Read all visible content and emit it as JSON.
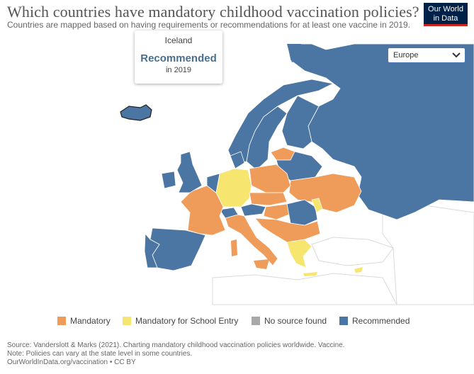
{
  "header": {
    "title": "Which countries have mandatory childhood vaccination policies?",
    "subtitle": "Countries are mapped based on having requirements or recommendations for at least one vaccine in 2019."
  },
  "logo": {
    "line1": "Our World",
    "line2": "in Data"
  },
  "region_selector": {
    "selected": "Europe",
    "icon": "chevron-down-icon"
  },
  "tooltip": {
    "country": "Iceland",
    "value": "Recommended",
    "year": "in 2019"
  },
  "legend": {
    "items": [
      {
        "label": "Mandatory",
        "color": "#ef9c5b"
      },
      {
        "label": "Mandatory for School Entry",
        "color": "#f6e56e"
      },
      {
        "label": "No source found",
        "color": "#a8a8a8"
      },
      {
        "label": "Recommended",
        "color": "#4b75a2"
      }
    ]
  },
  "map": {
    "region": "Europe",
    "year": 2019,
    "colors": {
      "land_other": "#ffffff",
      "border": "#dddddd",
      "sea": "#ffffff"
    }
  },
  "footer": {
    "source": "Source: Vanderslott & Marks (2021). Charting mandatory childhood vaccination policies worldwide. Vaccine.",
    "note": "Note: Policies can vary at the state level in some countries.",
    "link": "OurWorldInData.org/vaccination • CC BY"
  }
}
